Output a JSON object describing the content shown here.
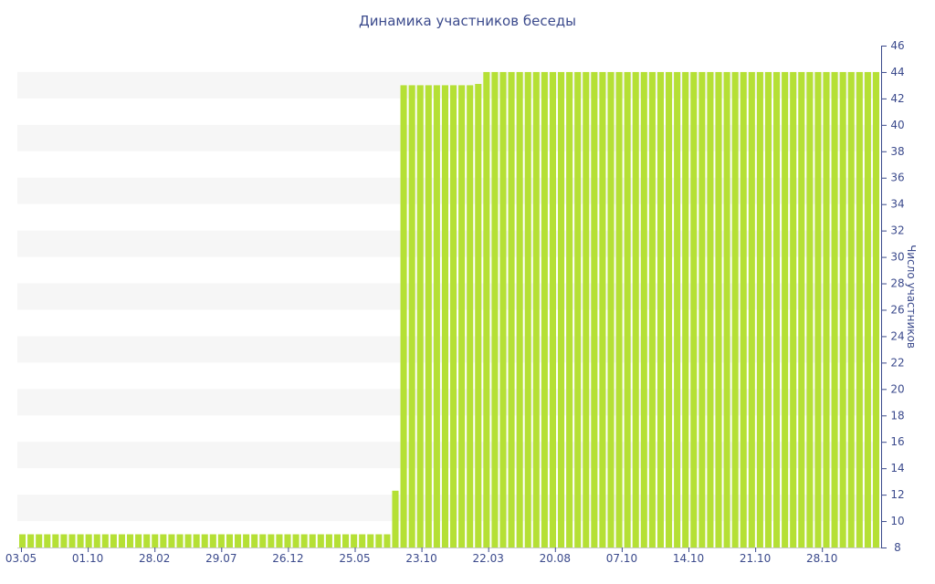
{
  "chart_data": {
    "type": "bar",
    "title": "Динамика участников беседы",
    "xlabel": "",
    "ylabel": "Число участников",
    "ylim": [
      8,
      46
    ],
    "y_ticks": [
      8,
      10,
      12,
      14,
      16,
      18,
      20,
      22,
      24,
      26,
      28,
      30,
      32,
      34,
      36,
      38,
      40,
      42,
      44,
      46
    ],
    "x_tick_labels": [
      "03.05",
      "01.10",
      "28.02",
      "29.07",
      "26.12",
      "25.05",
      "23.10",
      "22.03",
      "20.08",
      "07.10",
      "14.10",
      "21.10",
      "28.10"
    ],
    "y_axis_position": "right",
    "grid": "alternating horizontal bands",
    "bar_color": "#b5e035",
    "values": [
      9,
      9,
      9,
      9,
      9,
      9,
      9,
      9,
      9,
      9,
      9,
      9,
      9,
      9,
      9,
      9,
      9,
      9,
      9,
      9,
      9,
      9,
      9,
      9,
      9,
      9,
      9,
      9,
      9,
      9,
      9,
      9,
      9,
      9,
      9,
      9,
      9,
      9,
      9,
      9,
      9,
      9,
      9,
      9,
      9,
      12.3,
      43,
      43,
      43,
      43,
      43,
      43,
      43,
      43,
      43,
      43.1,
      44,
      44,
      44,
      44,
      44,
      44,
      44,
      44,
      44,
      44,
      44,
      44,
      44,
      44,
      44,
      44,
      44,
      44,
      44,
      44,
      44,
      44,
      44,
      44,
      44,
      44,
      44,
      44,
      44,
      44,
      44,
      44,
      44,
      44,
      44,
      44,
      44,
      44,
      44,
      44,
      44,
      44,
      44,
      44,
      44,
      44,
      44,
      44
    ]
  }
}
